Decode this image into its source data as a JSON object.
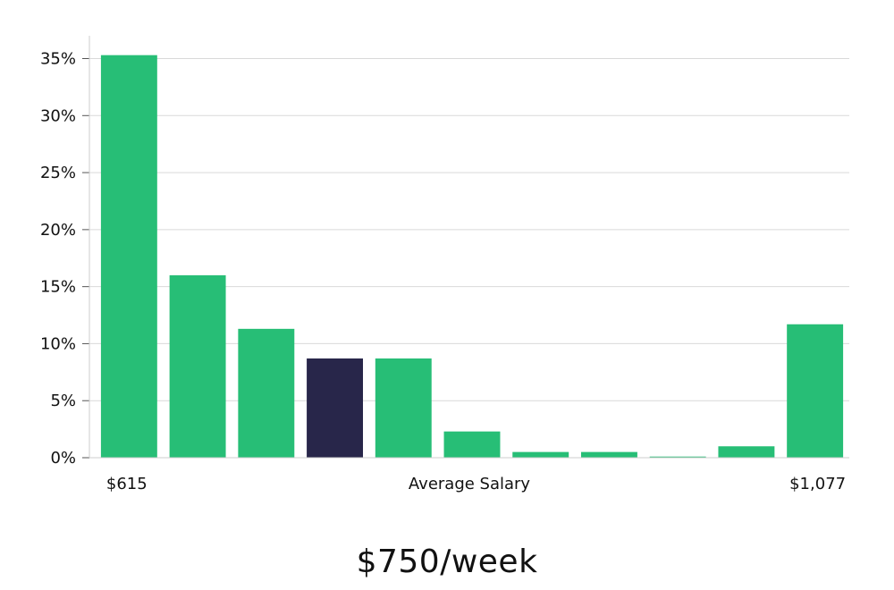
{
  "chart_data": {
    "type": "bar",
    "categories": [
      "$615",
      "",
      "",
      "",
      "",
      "",
      "",
      "",
      "",
      "",
      "$1,077"
    ],
    "series": [
      {
        "values": [
          35.3,
          16.0,
          11.3,
          8.7,
          8.7,
          2.3,
          0.5,
          0.5,
          0.1,
          1.0,
          11.7
        ]
      }
    ],
    "highlight_index": 3,
    "ylim": [
      0,
      37
    ],
    "yticks": [
      0,
      5,
      10,
      15,
      20,
      25,
      30,
      35
    ],
    "ytick_labels": [
      "0%",
      "5%",
      "10%",
      "15%",
      "20%",
      "25%",
      "30%",
      "35%"
    ],
    "xlabel": "Average Salary",
    "x_end_labels": [
      "$615",
      "$1,077"
    ],
    "grid": true,
    "colors": {
      "bar": "#27be76",
      "highlight": "#28264a",
      "grid": "#d9d9d9",
      "axis": "#cccccc"
    }
  },
  "subtitle": "$750/week"
}
